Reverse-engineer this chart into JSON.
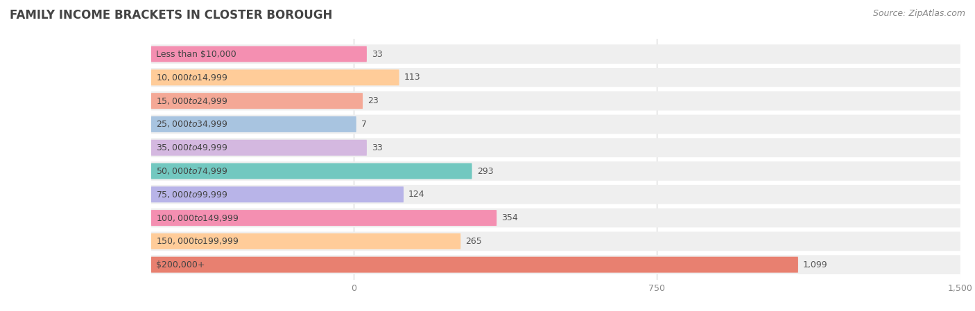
{
  "title": "FAMILY INCOME BRACKETS IN CLOSTER BOROUGH",
  "source": "Source: ZipAtlas.com",
  "categories": [
    "Less than $10,000",
    "$10,000 to $14,999",
    "$15,000 to $24,999",
    "$25,000 to $34,999",
    "$35,000 to $49,999",
    "$50,000 to $74,999",
    "$75,000 to $99,999",
    "$100,000 to $149,999",
    "$150,000 to $199,999",
    "$200,000+"
  ],
  "values": [
    33,
    113,
    23,
    7,
    33,
    293,
    124,
    354,
    265,
    1099
  ],
  "bar_colors": [
    "#f48fb1",
    "#ffcc99",
    "#f4a896",
    "#a8c4e0",
    "#d4b8e0",
    "#72c8c0",
    "#b8b4e8",
    "#f48fb1",
    "#ffcc99",
    "#e88070"
  ],
  "bg_track_color": "#efefef",
  "xlim_data": [
    -500,
    1500
  ],
  "data_zero": 0,
  "data_max": 1500,
  "xtick_values": [
    0,
    750,
    1500
  ],
  "background_color": "#ffffff",
  "title_fontsize": 12,
  "label_fontsize": 9,
  "value_fontsize": 9,
  "source_fontsize": 9
}
